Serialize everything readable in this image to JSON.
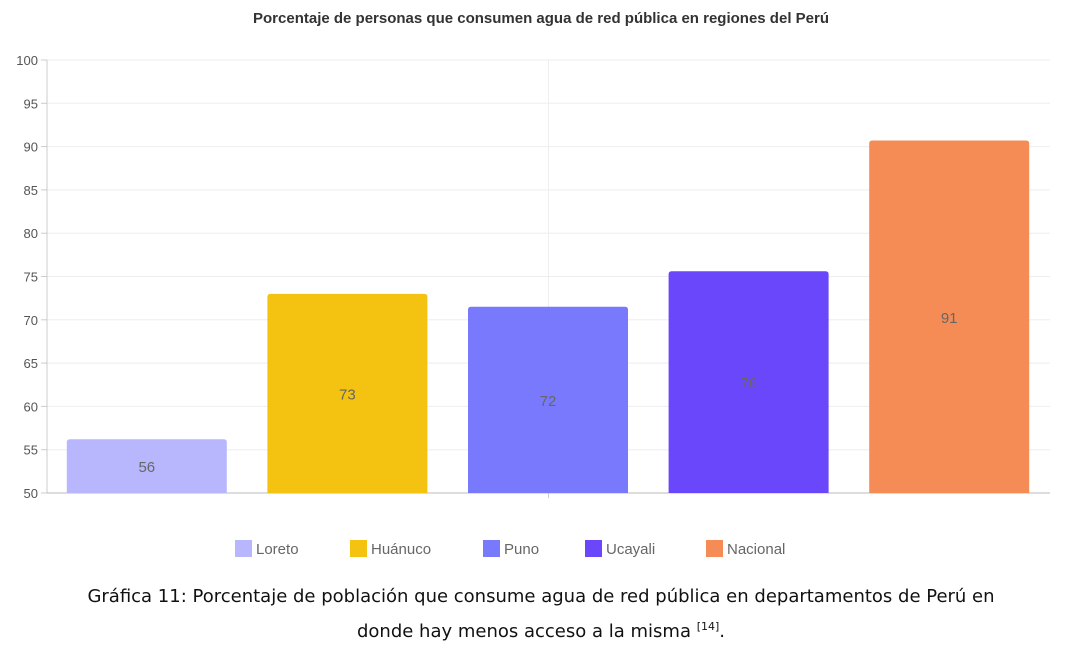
{
  "chart_data": {
    "type": "bar",
    "title": "Porcentaje de personas que consumen agua de red pública en regiones del Perú",
    "categories": [
      "Loreto",
      "Huánuco",
      "Puno",
      "Ucayali",
      "Nacional"
    ],
    "values": [
      56,
      73,
      72,
      76,
      91
    ],
    "data_labels": [
      "56",
      "73",
      "72",
      "76",
      "91"
    ],
    "plot_values": [
      56.2,
      73.0,
      71.5,
      75.6,
      90.7
    ],
    "colors": [
      "#b8b7fd",
      "#f4c311",
      "#7879fd",
      "#6a47fb",
      "#f58c56"
    ],
    "ylim": [
      50,
      100
    ],
    "yticks": [
      50,
      55,
      60,
      65,
      70,
      75,
      80,
      85,
      90,
      95,
      100
    ],
    "grid": true,
    "legend_position": "bottom"
  },
  "caption": {
    "line1": "Gráfica 11: Porcentaje de población que consume agua de red pública en departamentos de Perú en",
    "line2": "donde hay menos acceso a la misma ",
    "reference": "[14]",
    "end": "."
  }
}
